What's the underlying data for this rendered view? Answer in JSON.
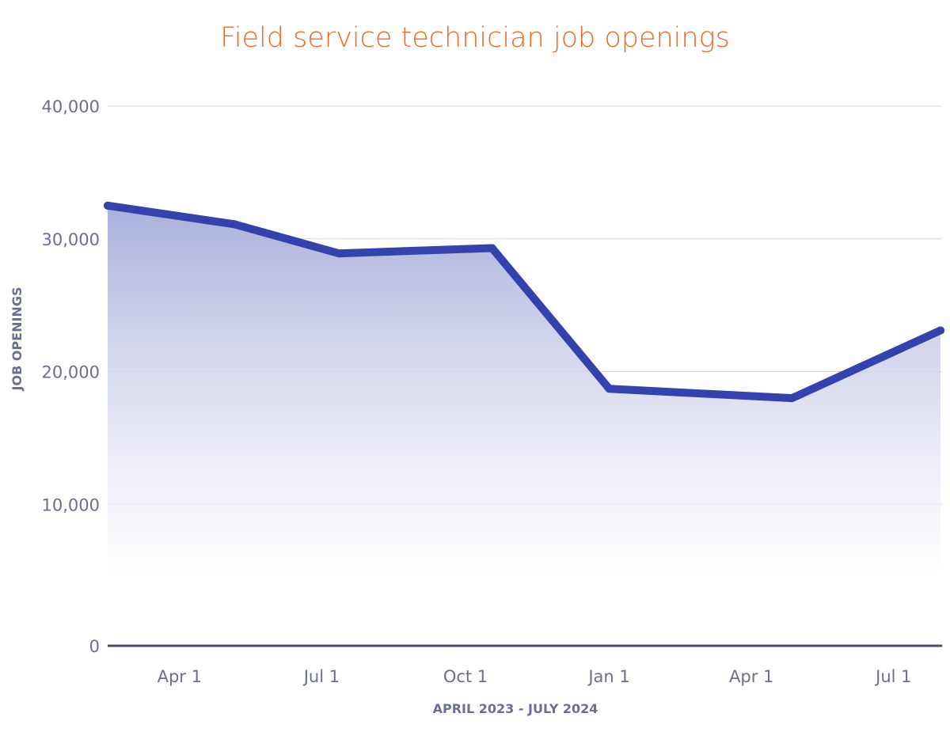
{
  "chart_data": {
    "type": "area",
    "title": "Field service technician job openings",
    "xlabel": "APRIL 2023 - JULY 2024",
    "ylabel": "JOB OPENINGS",
    "ylim": [
      0,
      40000
    ],
    "yticks": [
      0,
      10000,
      20000,
      30000,
      40000
    ],
    "ytick_labels": [
      "0",
      "10,000",
      "20,000",
      "30,000",
      "40,000"
    ],
    "xticks": [
      {
        "date": "2023-04-01",
        "label": "Apr 1"
      },
      {
        "date": "2023-07-01",
        "label": "Jul 1"
      },
      {
        "date": "2023-10-01",
        "label": "Oct 1"
      },
      {
        "date": "2024-01-01",
        "label": "Jan 1"
      },
      {
        "date": "2024-04-01",
        "label": "Apr 1"
      },
      {
        "date": "2024-07-01",
        "label": "Jul 1"
      }
    ],
    "xlim": [
      "2023-02-14",
      "2024-08-01"
    ],
    "grid": true,
    "series": [
      {
        "name": "Job openings",
        "color": "#3442ad",
        "points": [
          {
            "date": "2023-02-14",
            "value": 32500
          },
          {
            "date": "2023-05-06",
            "value": 31100
          },
          {
            "date": "2023-07-12",
            "value": 28900
          },
          {
            "date": "2023-10-18",
            "value": 29300
          },
          {
            "date": "2024-01-01",
            "value": 18700
          },
          {
            "date": "2024-04-27",
            "value": 18000
          },
          {
            "date": "2024-07-31",
            "value": 23100
          }
        ]
      }
    ]
  }
}
